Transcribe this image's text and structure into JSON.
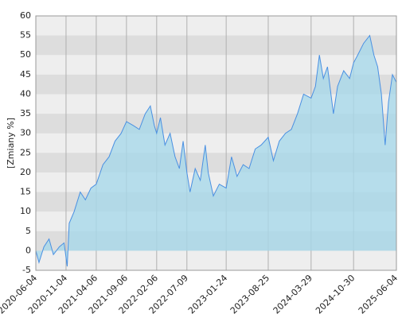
{
  "chart_data": {
    "type": "area",
    "y_label": "[Zmiany %]",
    "x": [
      "2020-06-04",
      "2020-06-20",
      "2020-07-15",
      "2020-08-10",
      "2020-09-01",
      "2020-10-01",
      "2020-10-25",
      "2020-11-10",
      "2020-11-20",
      "2020-12-15",
      "2021-01-15",
      "2021-02-10",
      "2021-03-10",
      "2021-04-06",
      "2021-05-10",
      "2021-06-10",
      "2021-07-10",
      "2021-08-10",
      "2021-09-06",
      "2021-10-10",
      "2021-11-10",
      "2021-12-10",
      "2022-01-05",
      "2022-01-25",
      "2022-02-06",
      "2022-02-25",
      "2022-03-20",
      "2022-04-15",
      "2022-05-10",
      "2022-06-01",
      "2022-06-20",
      "2022-07-09",
      "2022-07-25",
      "2022-08-20",
      "2022-09-15",
      "2022-10-10",
      "2022-10-25",
      "2022-11-20",
      "2022-12-20",
      "2023-01-24",
      "2023-02-20",
      "2023-03-20",
      "2023-04-20",
      "2023-05-20",
      "2023-06-20",
      "2023-07-20",
      "2023-08-25",
      "2023-09-20",
      "2023-10-20",
      "2023-11-20",
      "2023-12-20",
      "2024-01-20",
      "2024-02-20",
      "2024-03-29",
      "2024-04-20",
      "2024-05-10",
      "2024-05-30",
      "2024-06-20",
      "2024-07-20",
      "2024-08-10",
      "2024-09-10",
      "2024-10-10",
      "2024-10-30",
      "2024-11-20",
      "2024-12-20",
      "2025-01-20",
      "2025-02-10",
      "2025-03-01",
      "2025-03-20",
      "2025-04-08",
      "2025-04-25",
      "2025-05-15",
      "2025-06-04"
    ],
    "series": [
      {
        "color": "#4a90e2",
        "fill": "#a8d8ea",
        "values": [
          0,
          -3,
          1,
          3,
          -1,
          1,
          2,
          -4,
          7,
          10,
          15,
          13,
          16,
          17,
          22,
          24,
          28,
          30,
          33,
          32,
          31,
          35,
          37,
          32,
          30,
          34,
          27,
          30,
          24,
          21,
          28,
          20,
          15,
          21,
          18,
          27,
          20,
          14,
          17,
          16,
          24,
          19,
          22,
          21,
          26,
          27,
          29,
          23,
          28,
          30,
          31,
          35,
          40,
          39,
          42,
          50,
          44,
          47,
          35,
          42,
          46,
          44,
          48,
          50,
          53,
          55,
          50,
          47,
          40,
          27,
          38,
          45,
          43
        ]
      }
    ],
    "xlim": [
      "2020-06-04",
      "2025-06-04"
    ],
    "xticks": [
      "2020-06-04",
      "2020-11-04",
      "2021-04-06",
      "2021-09-06",
      "2022-02-06",
      "2022-07-09",
      "2023-01-24",
      "2023-08-25",
      "2024-03-29",
      "2024-10-30",
      "2025-06-04"
    ],
    "ylim": [
      -5,
      60
    ],
    "yticks": [
      -5,
      0,
      5,
      10,
      15,
      20,
      25,
      30,
      35,
      40,
      45,
      50,
      55,
      60
    ],
    "grid": true
  }
}
